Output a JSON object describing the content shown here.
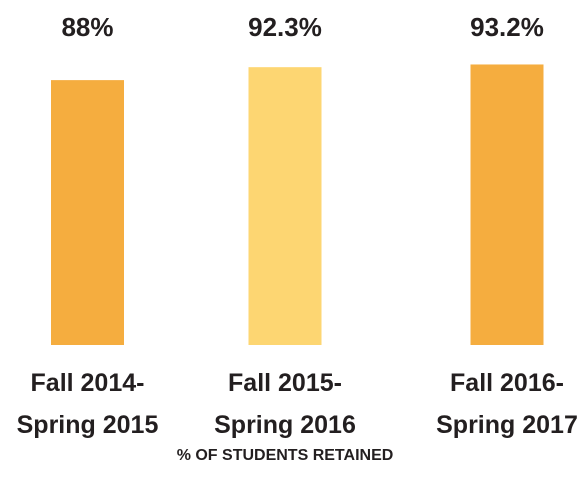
{
  "chart_data": {
    "type": "bar",
    "x_label": "% OF STUDENTS RETAINED",
    "categories": [
      "Fall 2014-\nSpring 2015",
      "Fall 2015-\nSpring 2016",
      "Fall 2016-\nSpring 2017"
    ],
    "values": [
      88,
      92.3,
      93.2
    ],
    "value_labels": [
      "88%",
      "92.3%",
      "93.2%"
    ],
    "colors": [
      "#f5ad3f",
      "#fdd672",
      "#f5ad3f"
    ],
    "ylim": [
      0,
      100
    ],
    "grid": false
  }
}
